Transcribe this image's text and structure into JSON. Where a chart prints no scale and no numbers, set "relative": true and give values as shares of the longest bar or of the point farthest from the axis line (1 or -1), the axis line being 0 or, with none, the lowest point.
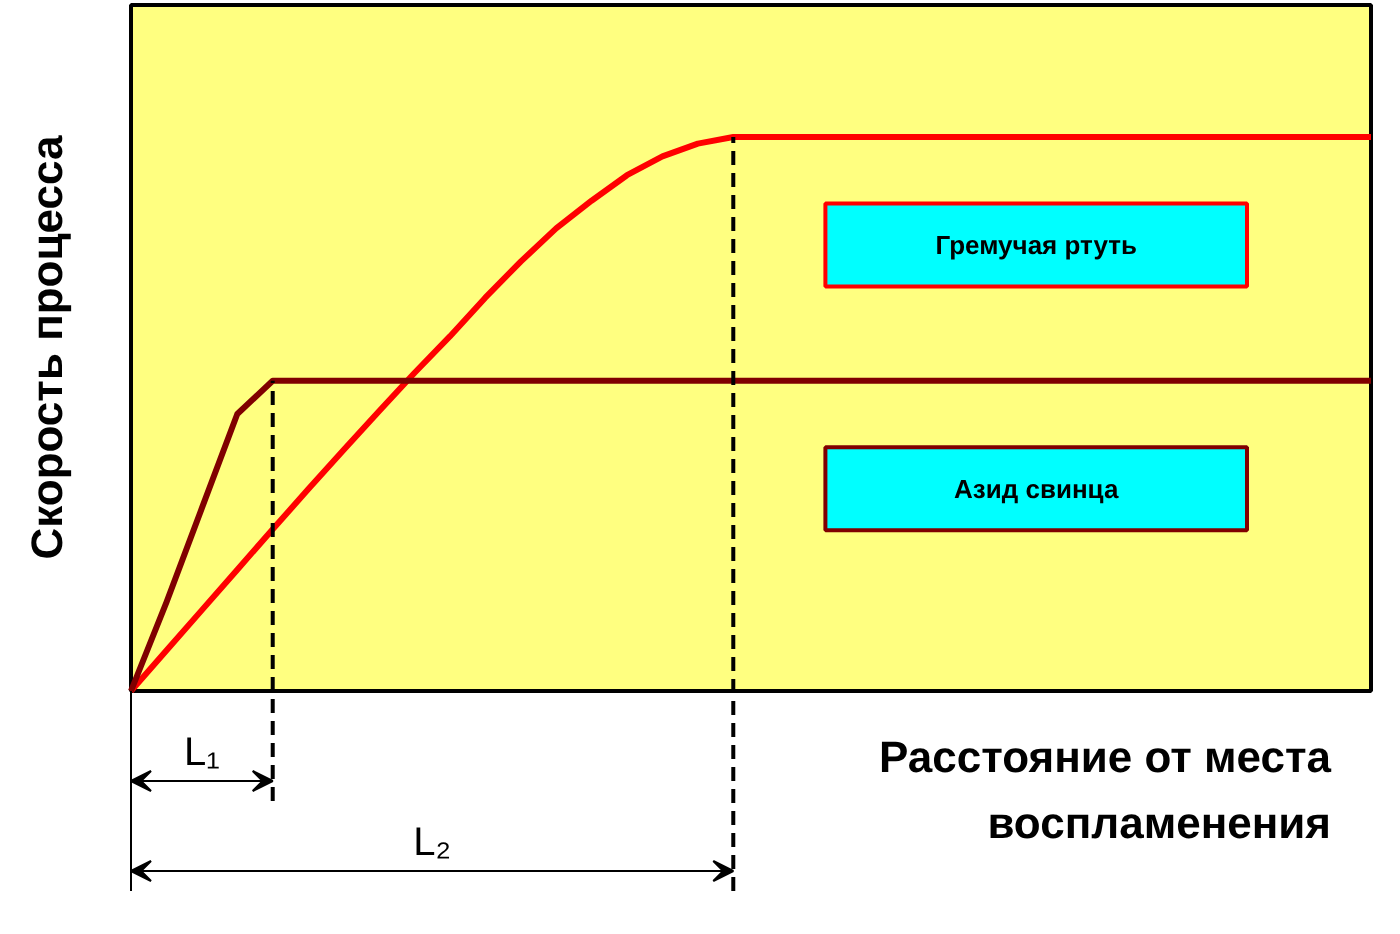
{
  "chart_data": {
    "type": "line",
    "relative": true,
    "ylabel": "Скорость процесса",
    "xlabel": "Расстояние от места воспламенения",
    "categories": [
      null,
      null,
      null,
      null,
      null,
      null,
      null,
      null,
      null,
      null,
      null,
      null,
      null,
      null,
      null,
      null,
      null,
      null,
      null,
      null,
      null,
      null,
      null,
      null,
      null,
      null,
      null,
      null,
      null,
      null,
      null,
      null,
      null,
      null,
      null,
      null
    ],
    "marker": "none",
    "line_style": "solid",
    "series": [
      {
        "name": "Гремучая ртуть",
        "color": "#ff0000",
        "values": [
          0,
          0.073,
          0.146,
          0.219,
          0.292,
          0.364,
          0.435,
          0.505,
          0.574,
          0.64,
          0.71,
          0.775,
          0.835,
          0.885,
          0.931,
          0.965,
          0.988,
          1,
          1,
          1,
          1,
          1,
          1,
          1,
          1,
          1,
          1,
          1,
          1,
          1,
          1,
          1,
          1,
          1,
          1,
          1
        ]
      },
      {
        "name": "Азид свинца",
        "color": "#800000",
        "values": [
          0,
          0.16,
          0.33,
          0.5,
          0.56,
          0.56,
          0.56,
          0.56,
          0.56,
          0.56,
          0.56,
          0.56,
          0.56,
          0.56,
          0.56,
          0.56,
          0.56,
          0.56,
          0.56,
          0.56,
          0.56,
          0.56,
          0.56,
          0.56,
          0.56,
          0.56,
          0.56,
          0.56,
          0.56,
          0.56,
          0.56,
          0.56,
          0.56,
          0.56,
          0.56,
          0.56
        ]
      }
    ],
    "annotations": [
      "L₁",
      "L₂"
    ]
  }
}
